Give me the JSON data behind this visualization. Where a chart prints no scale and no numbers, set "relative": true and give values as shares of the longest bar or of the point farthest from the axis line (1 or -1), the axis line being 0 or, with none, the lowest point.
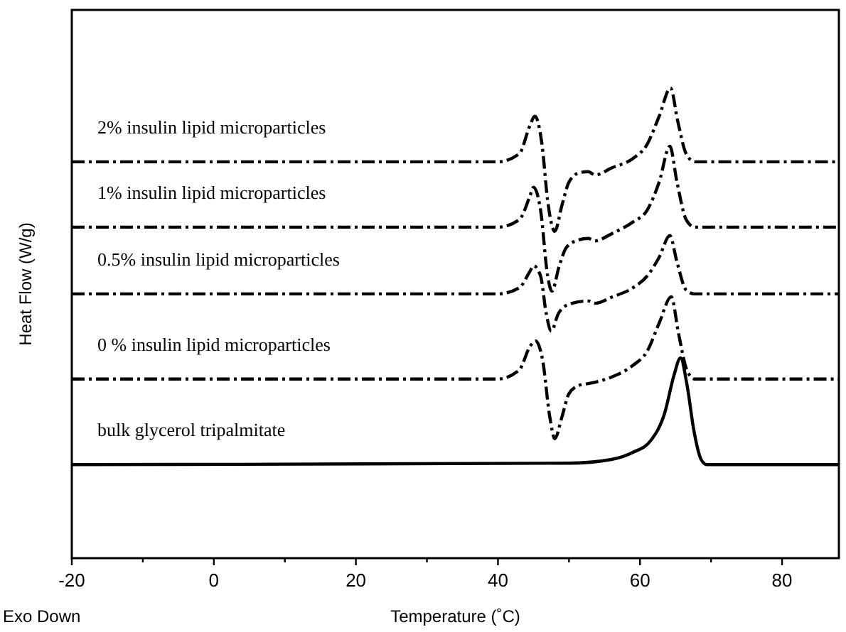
{
  "chart_data": {
    "type": "line",
    "relative": true,
    "xlabel": "Temperature (˚C)",
    "ylabel": "Heat Flow (W/g)",
    "annotations": [
      "Exo Down"
    ],
    "xlim": [
      -20,
      88
    ],
    "xticks": [
      -20,
      {
        "value": -10,
        "label": null
      },
      0,
      {
        "value": 10,
        "label": null
      },
      20,
      {
        "value": 30,
        "label": null
      },
      40,
      {
        "value": 50,
        "label": null
      },
      60,
      {
        "value": 70,
        "label": null
      },
      80
    ],
    "legend": false,
    "grid": false,
    "marker": "none",
    "series": [
      {
        "name": "2% insulin lipid microparticles",
        "color": "#000000",
        "line_style": "dashed",
        "x": [
          -20,
          40,
          43,
          44.5,
          45.2,
          46.2,
          47,
          48,
          49,
          50,
          51.5,
          52.7,
          53.7,
          56,
          59,
          61,
          62.7,
          64.3,
          65.3,
          66.5,
          67.7,
          88
        ],
        "values": [
          0.843,
          0.843,
          0.86,
          0.92,
          0.94,
          0.88,
          0.76,
          0.695,
          0.75,
          0.8,
          0.82,
          0.822,
          0.815,
          0.83,
          0.85,
          0.88,
          0.94,
          1.0,
          0.93,
          0.86,
          0.843,
          0.843
        ]
      },
      {
        "name": "1% insulin lipid microparticles",
        "color": "#000000",
        "line_style": "dashed",
        "x": [
          -20,
          40,
          43,
          44.5,
          45,
          46,
          47,
          47.6,
          48.6,
          49.6,
          51,
          52.7,
          53.7,
          56,
          59,
          61,
          62.7,
          64.2,
          65.2,
          66.5,
          67.7,
          88
        ],
        "values": [
          0.704,
          0.704,
          0.72,
          0.77,
          0.789,
          0.74,
          0.6,
          0.568,
          0.62,
          0.66,
          0.675,
          0.68,
          0.675,
          0.69,
          0.715,
          0.74,
          0.8,
          0.876,
          0.8,
          0.72,
          0.704,
          0.704
        ]
      },
      {
        "name": "0.5% insulin lipid microparticles",
        "color": "#000000",
        "line_style": "dashed",
        "x": [
          -20,
          40,
          43,
          44.5,
          45,
          46,
          46.8,
          47.5,
          48.5,
          50,
          52.7,
          53.7,
          56,
          59,
          61,
          62.7,
          64.2,
          65.2,
          66.5,
          67.7,
          88
        ],
        "values": [
          0.562,
          0.562,
          0.575,
          0.61,
          0.622,
          0.6,
          0.52,
          0.483,
          0.52,
          0.54,
          0.547,
          0.542,
          0.555,
          0.575,
          0.6,
          0.64,
          0.686,
          0.63,
          0.57,
          0.562,
          0.562
        ]
      },
      {
        "name": "0 % insulin lipid microparticles",
        "color": "#000000",
        "line_style": "dashed",
        "x": [
          -20,
          40,
          43,
          44.5,
          45.3,
          46.3,
          47.3,
          48,
          49,
          50,
          51.5,
          53,
          56,
          59,
          61,
          62.7,
          64.4,
          65.4,
          66.6,
          67.7,
          88
        ],
        "values": [
          0.381,
          0.381,
          0.4,
          0.45,
          0.462,
          0.42,
          0.3,
          0.254,
          0.3,
          0.35,
          0.368,
          0.372,
          0.385,
          0.41,
          0.44,
          0.5,
          0.556,
          0.48,
          0.4,
          0.381,
          0.381
        ]
      },
      {
        "name": "bulk glycerol tripalmitate",
        "color": "#000000",
        "line_style": "solid",
        "x": [
          -20,
          50,
          56,
          59,
          61.5,
          63.5,
          64.8,
          65.7,
          66.6,
          67.6,
          68.6,
          69.4,
          88
        ],
        "values": [
          0.199,
          0.202,
          0.21,
          0.225,
          0.25,
          0.31,
          0.39,
          0.426,
          0.37,
          0.27,
          0.21,
          0.199,
          0.199
        ]
      }
    ]
  }
}
